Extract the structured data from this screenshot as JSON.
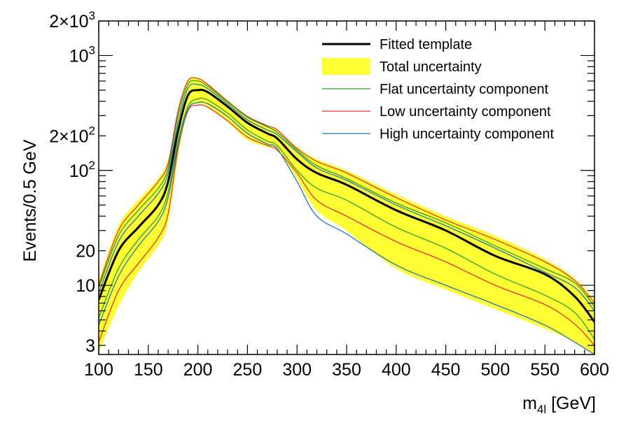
{
  "chart_data": {
    "type": "line",
    "xlabel_main": "m",
    "xlabel_sub": "4l",
    "xlabel_unit": " [GeV]",
    "ylabel": "Events/0.5 GeV",
    "xlim": [
      100,
      600
    ],
    "ylim": [
      2.5,
      2000
    ],
    "yscale": "log",
    "x_ticks": [
      "100",
      "150",
      "200",
      "250",
      "300",
      "350",
      "400",
      "450",
      "500",
      "550",
      "600"
    ],
    "y_ticks": [
      {
        "value": 3,
        "label": "3"
      },
      {
        "value": 10,
        "label": "10"
      },
      {
        "value": 20,
        "label": "20"
      },
      {
        "value": 100,
        "label": "10",
        "exp": "2"
      },
      {
        "value": 200,
        "label": "2×10",
        "exp": "2"
      },
      {
        "value": 1000,
        "label": "10",
        "exp": "3"
      },
      {
        "value": 2000,
        "label": "2×10",
        "exp": "3"
      }
    ],
    "x": [
      100,
      120,
      140,
      160,
      170,
      180,
      190,
      200,
      210,
      230,
      250,
      270,
      280,
      300,
      320,
      350,
      400,
      450,
      500,
      550,
      580,
      600
    ],
    "series": [
      {
        "name": "Fitted template",
        "color": "#000000",
        "values": [
          7.5,
          20,
          32,
          50,
          80,
          220,
          450,
          500,
          480,
          360,
          260,
          210,
          190,
          125,
          95,
          75,
          45,
          30,
          18,
          12.5,
          8,
          4.8
        ]
      },
      {
        "name": "Total uncertainty (upper)",
        "color": "#ffff33",
        "values": [
          11,
          33,
          55,
          85,
          125,
          330,
          610,
          640,
          570,
          410,
          300,
          245,
          225,
          160,
          125,
          100,
          62,
          40,
          27,
          17,
          11.5,
          7.5
        ]
      },
      {
        "name": "Total uncertainty (lower)",
        "color": "#ffff33",
        "values": [
          2.6,
          6.5,
          13,
          22,
          35,
          130,
          330,
          380,
          360,
          265,
          185,
          160,
          150,
          85,
          45,
          30,
          14,
          9.2,
          6.2,
          4.2,
          3.2,
          2.5
        ]
      },
      {
        "name": "Flat uncertainty component",
        "color": "#2ca02c",
        "values": [
          9.5,
          27,
          45,
          70,
          105,
          300,
          560,
          600,
          540,
          395,
          290,
          240,
          215,
          150,
          110,
          85,
          52,
          35,
          22,
          14,
          10.5,
          6.5
        ]
      },
      {
        "name": "Flat uncertainty component (lower)",
        "color": "#2ca02c",
        "values": [
          5.2,
          14,
          25,
          40,
          65,
          180,
          360,
          420,
          410,
          315,
          225,
          180,
          165,
          100,
          70,
          55,
          32,
          21,
          12.5,
          8.2,
          5.8,
          3.4
        ]
      },
      {
        "name": "Low uncertainty component",
        "color": "#e8312a",
        "values": [
          10,
          30,
          50,
          80,
          115,
          330,
          600,
          630,
          560,
          400,
          295,
          245,
          225,
          155,
          120,
          95,
          58,
          37,
          25,
          16,
          11,
          7
        ]
      },
      {
        "name": "Low uncertainty component (lower)",
        "color": "#e8312a",
        "values": [
          3.2,
          9,
          15.5,
          26,
          42,
          155,
          330,
          370,
          355,
          270,
          195,
          165,
          150,
          95,
          55,
          40,
          24,
          16,
          10,
          6.8,
          4.6,
          3
        ]
      },
      {
        "name": "High uncertainty component",
        "color": "#1f77b4",
        "values": [
          8.5,
          24,
          40,
          63,
          95,
          260,
          520,
          560,
          515,
          380,
          275,
          225,
          205,
          145,
          105,
          82,
          50,
          33,
          21,
          13,
          9.6,
          6
        ]
      },
      {
        "name": "High uncertainty component (lower)",
        "color": "#1f77b4",
        "values": [
          4.5,
          12,
          22,
          36,
          58,
          165,
          340,
          390,
          380,
          295,
          210,
          170,
          155,
          80,
          40,
          28,
          15,
          10,
          6.8,
          4.5,
          3.2,
          2.5
        ]
      }
    ],
    "legend": [
      {
        "label": "Fitted template",
        "style": "line",
        "color": "#000000"
      },
      {
        "label": "Total uncertainty",
        "style": "box",
        "color": "#ffff33"
      },
      {
        "label": "Flat uncertainty component",
        "style": "line",
        "color": "#2ca02c"
      },
      {
        "label": "Low uncertainty component",
        "style": "line",
        "color": "#e8312a"
      },
      {
        "label": "High uncertainty component",
        "style": "line",
        "color": "#1f77b4"
      }
    ],
    "legend_position": "top-right",
    "grid": false
  }
}
